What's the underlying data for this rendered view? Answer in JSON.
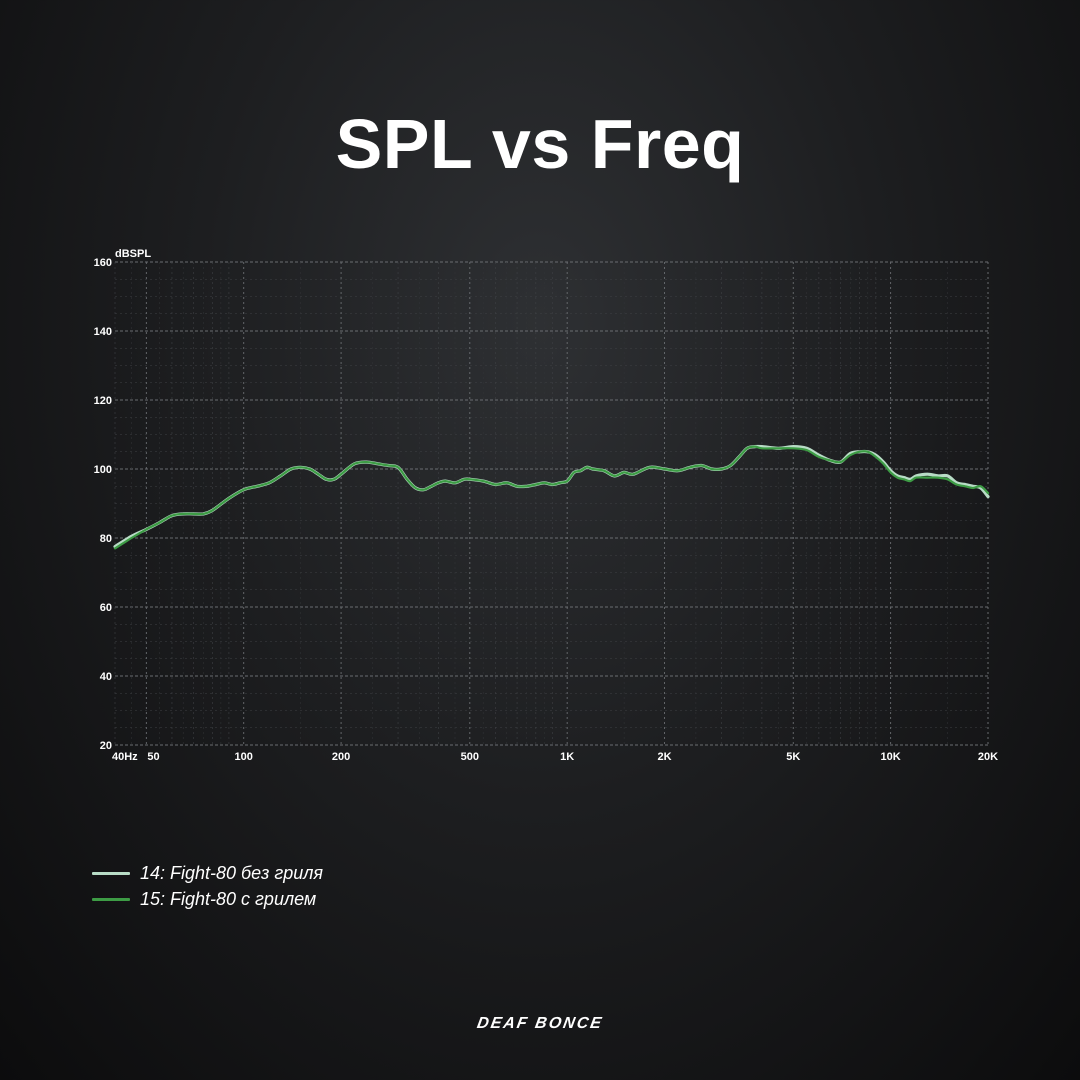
{
  "title": "SPL vs Freq",
  "brand": "DEAF BONCE",
  "legend": [
    {
      "label": "14: Fight-80 без гриля",
      "color": "#b8dcc6"
    },
    {
      "label": "15: Fight-80 с грилем",
      "color": "#3d9c45"
    }
  ],
  "chart_data": {
    "type": "line",
    "title": "SPL vs Freq",
    "ylabel": "dBSPL",
    "xlabel": "",
    "x_scale": "log",
    "xlim": [
      40,
      20000
    ],
    "ylim": [
      20,
      160
    ],
    "grid": true,
    "legend_position": "bottom-left",
    "x_ticks": [
      {
        "value": 40,
        "label": "40Hz"
      },
      {
        "value": 50,
        "label": "50"
      },
      {
        "value": 100,
        "label": "100"
      },
      {
        "value": 200,
        "label": "200"
      },
      {
        "value": 500,
        "label": "500"
      },
      {
        "value": 1000,
        "label": "1K"
      },
      {
        "value": 2000,
        "label": "2K"
      },
      {
        "value": 5000,
        "label": "5K"
      },
      {
        "value": 10000,
        "label": "10K"
      },
      {
        "value": 20000,
        "label": "20K"
      }
    ],
    "y_ticks": [
      20,
      40,
      60,
      80,
      100,
      120,
      140,
      160
    ],
    "x": [
      40,
      45,
      50,
      55,
      60,
      65,
      70,
      75,
      80,
      90,
      100,
      110,
      120,
      130,
      140,
      150,
      160,
      170,
      180,
      190,
      200,
      220,
      240,
      260,
      280,
      300,
      320,
      340,
      360,
      380,
      400,
      420,
      450,
      480,
      500,
      550,
      600,
      650,
      700,
      750,
      800,
      850,
      900,
      950,
      1000,
      1050,
      1100,
      1150,
      1200,
      1300,
      1400,
      1500,
      1600,
      1800,
      2000,
      2200,
      2400,
      2600,
      2800,
      3000,
      3200,
      3400,
      3600,
      3800,
      4000,
      4500,
      5000,
      5500,
      6000,
      6500,
      7000,
      7500,
      8000,
      8500,
      9000,
      9500,
      10000,
      10500,
      11000,
      11500,
      12000,
      13000,
      14000,
      15000,
      16000,
      17000,
      18000,
      19000,
      20000
    ],
    "series": [
      {
        "name": "14: Fight-80 без гриля",
        "values": [
          77.5,
          80.5,
          82.5,
          84.5,
          86.5,
          87.0,
          87.0,
          87.0,
          88.0,
          91.5,
          94.0,
          95.0,
          96.0,
          98.0,
          100.0,
          100.5,
          100.0,
          98.5,
          97.0,
          97.0,
          98.5,
          101.5,
          102.0,
          101.5,
          101.0,
          100.5,
          97.0,
          94.5,
          94.0,
          95.0,
          96.0,
          96.5,
          96.0,
          97.0,
          97.0,
          96.5,
          95.5,
          96.0,
          95.0,
          95.0,
          95.5,
          96.0,
          95.5,
          96.0,
          96.5,
          99.0,
          99.5,
          100.5,
          100.0,
          99.5,
          98.0,
          99.0,
          98.5,
          100.5,
          100.0,
          99.5,
          100.5,
          101.0,
          100.0,
          100.0,
          101.0,
          103.5,
          106.0,
          106.5,
          106.5,
          106.0,
          106.5,
          106.0,
          104.0,
          102.5,
          102.0,
          104.5,
          105.0,
          105.0,
          104.0,
          102.0,
          99.5,
          98.0,
          97.5,
          97.0,
          98.0,
          98.5,
          98.0,
          98.0,
          96.0,
          95.5,
          95.0,
          94.5,
          92.0
        ]
      },
      {
        "name": "15: Fight-80 с грилем",
        "values": [
          77.0,
          80.0,
          82.5,
          84.5,
          86.5,
          87.0,
          87.0,
          87.0,
          88.0,
          91.5,
          94.0,
          95.0,
          96.0,
          98.0,
          100.0,
          100.5,
          100.0,
          98.5,
          97.0,
          97.0,
          98.5,
          101.5,
          102.0,
          101.5,
          101.0,
          100.5,
          97.0,
          94.5,
          94.0,
          95.0,
          96.0,
          96.5,
          96.0,
          97.0,
          97.0,
          96.5,
          95.5,
          96.0,
          95.0,
          95.0,
          95.5,
          96.0,
          95.5,
          96.0,
          96.5,
          99.0,
          99.5,
          100.5,
          100.0,
          99.5,
          98.0,
          99.0,
          98.5,
          100.5,
          100.0,
          99.5,
          100.5,
          101.0,
          100.0,
          100.0,
          101.0,
          103.5,
          106.0,
          106.5,
          106.0,
          106.0,
          106.0,
          105.5,
          103.5,
          102.5,
          102.0,
          104.0,
          105.0,
          105.0,
          103.5,
          101.5,
          99.0,
          97.5,
          97.0,
          96.5,
          97.5,
          97.5,
          97.5,
          97.0,
          95.5,
          95.0,
          94.5,
          95.0,
          93.0
        ]
      }
    ]
  }
}
